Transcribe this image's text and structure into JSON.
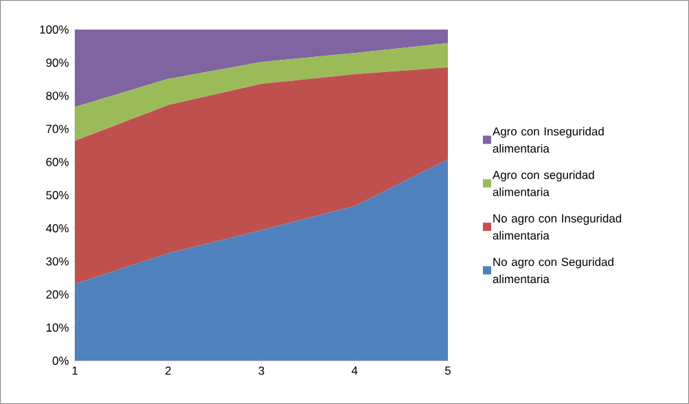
{
  "chart_data": {
    "type": "area",
    "stacked": true,
    "x": [
      1,
      2,
      3,
      4,
      5
    ],
    "xlim": [
      1,
      5
    ],
    "xticks": [
      1,
      2,
      3,
      4,
      5
    ],
    "ylim": [
      0,
      100
    ],
    "yticks": [
      {
        "value": 0,
        "label": "0%"
      },
      {
        "value": 10,
        "label": "10%"
      },
      {
        "value": 20,
        "label": "20%"
      },
      {
        "value": 30,
        "label": "30%"
      },
      {
        "value": 40,
        "label": "40%"
      },
      {
        "value": 50,
        "label": "50%"
      },
      {
        "value": 60,
        "label": "60%"
      },
      {
        "value": 70,
        "label": "70%"
      },
      {
        "value": 80,
        "label": "80%"
      },
      {
        "value": 90,
        "label": "90%"
      },
      {
        "value": 100,
        "label": "100%"
      }
    ],
    "legend": "right",
    "grid": false,
    "series": [
      {
        "name": "No agro con Seguridad alimentaria",
        "color": "#4f81bd",
        "values": [
          23.2,
          32.4,
          39.4,
          46.7,
          60.8
        ]
      },
      {
        "name": "No agro con Inseguridad alimentaria",
        "color": "#c0504d",
        "values": [
          43.2,
          44.8,
          44.2,
          39.8,
          27.8
        ]
      },
      {
        "name": "Agro con seguridad alimentaria",
        "color": "#9bbb59",
        "values": [
          10.2,
          7.9,
          6.6,
          6.4,
          7.3
        ]
      },
      {
        "name": "Agro con Inseguridad alimentaria",
        "color": "#8064a2",
        "values": [
          23.4,
          14.9,
          9.8,
          7.1,
          4.1
        ]
      }
    ]
  }
}
